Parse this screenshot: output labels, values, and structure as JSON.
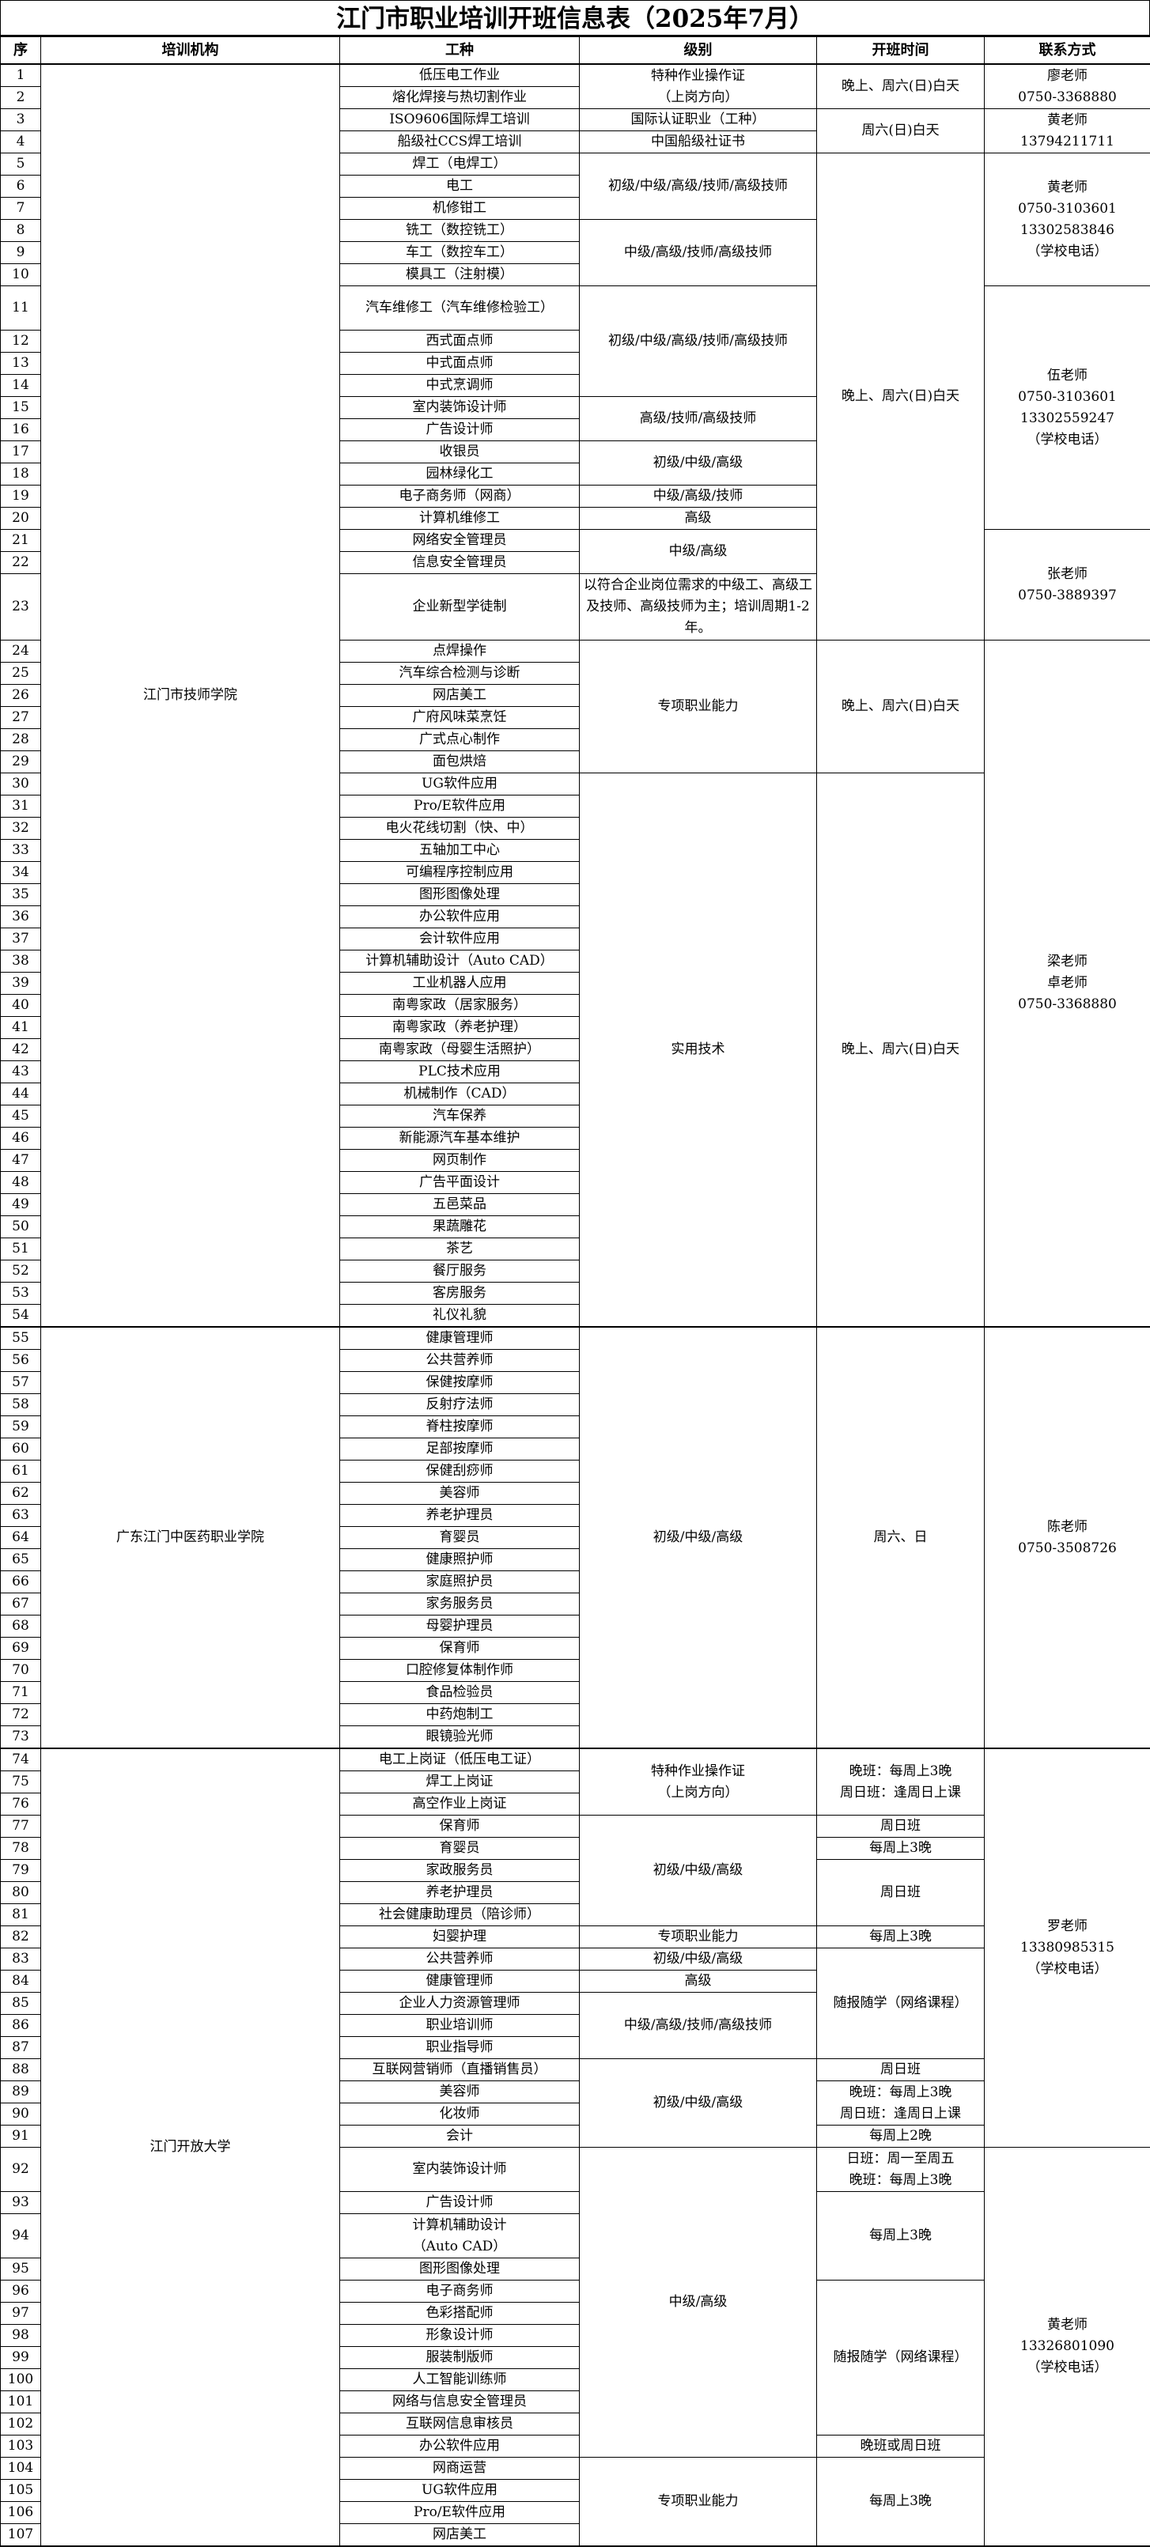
{
  "title": "江门市职业培训开班信息表（2025年7月）",
  "headers": {
    "no": "序",
    "institution": "培训机构",
    "trade": "工种",
    "level": "级别",
    "time": "开班时间",
    "contact": "联系方式"
  },
  "rows": [
    {
      "no": "1",
      "trade": "低压电工作业"
    },
    {
      "no": "2",
      "trade": "熔化焊接与热切割作业"
    },
    {
      "no": "3",
      "trade": "ISO9606国际焊工培训"
    },
    {
      "no": "4",
      "trade": "船级社CCS焊工培训"
    },
    {
      "no": "5",
      "trade": "焊工（电焊工）"
    },
    {
      "no": "6",
      "trade": "电工"
    },
    {
      "no": "7",
      "trade": "机修钳工"
    },
    {
      "no": "8",
      "trade": "铣工（数控铣工）"
    },
    {
      "no": "9",
      "trade": "车工（数控车工）"
    },
    {
      "no": "10",
      "trade": "模具工（注射模）"
    },
    {
      "no": "11",
      "trade": "汽车维修工（汽车维修检验工）"
    },
    {
      "no": "12",
      "trade": "西式面点师"
    },
    {
      "no": "13",
      "trade": "中式面点师"
    },
    {
      "no": "14",
      "trade": "中式烹调师"
    },
    {
      "no": "15",
      "trade": "室内装饰设计师"
    },
    {
      "no": "16",
      "trade": "广告设计师"
    },
    {
      "no": "17",
      "trade": "收银员"
    },
    {
      "no": "18",
      "trade": "园林绿化工"
    },
    {
      "no": "19",
      "trade": "电子商务师（网商）"
    },
    {
      "no": "20",
      "trade": "计算机维修工"
    },
    {
      "no": "21",
      "trade": "网络安全管理员"
    },
    {
      "no": "22",
      "trade": "信息安全管理员"
    },
    {
      "no": "23",
      "trade": "企业新型学徒制"
    },
    {
      "no": "24",
      "trade": "点焊操作"
    },
    {
      "no": "25",
      "trade": "汽车综合检测与诊断"
    },
    {
      "no": "26",
      "trade": "网店美工"
    },
    {
      "no": "27",
      "trade": "广府风味菜烹饪"
    },
    {
      "no": "28",
      "trade": "广式点心制作"
    },
    {
      "no": "29",
      "trade": "面包烘焙"
    },
    {
      "no": "30",
      "trade": "UG软件应用"
    },
    {
      "no": "31",
      "trade": "Pro/E软件应用"
    },
    {
      "no": "32",
      "trade": "电火花线切割（快、中）"
    },
    {
      "no": "33",
      "trade": "五轴加工中心"
    },
    {
      "no": "34",
      "trade": "可编程序控制应用"
    },
    {
      "no": "35",
      "trade": "图形图像处理"
    },
    {
      "no": "36",
      "trade": "办公软件应用"
    },
    {
      "no": "37",
      "trade": "会计软件应用"
    },
    {
      "no": "38",
      "trade": "计算机辅助设计（Auto CAD）"
    },
    {
      "no": "39",
      "trade": "工业机器人应用"
    },
    {
      "no": "40",
      "trade": "南粤家政（居家服务）"
    },
    {
      "no": "41",
      "trade": "南粤家政（养老护理）"
    },
    {
      "no": "42",
      "trade": "南粤家政（母婴生活照护）"
    },
    {
      "no": "43",
      "trade": "PLC技术应用"
    },
    {
      "no": "44",
      "trade": "机械制作（CAD）"
    },
    {
      "no": "45",
      "trade": "汽车保养"
    },
    {
      "no": "46",
      "trade": "新能源汽车基本维护"
    },
    {
      "no": "47",
      "trade": "网页制作"
    },
    {
      "no": "48",
      "trade": "广告平面设计"
    },
    {
      "no": "49",
      "trade": "五邑菜品"
    },
    {
      "no": "50",
      "trade": "果蔬雕花"
    },
    {
      "no": "51",
      "trade": "茶艺"
    },
    {
      "no": "52",
      "trade": "餐厅服务"
    },
    {
      "no": "53",
      "trade": "客房服务"
    },
    {
      "no": "54",
      "trade": "礼仪礼貌"
    },
    {
      "no": "55",
      "trade": "健康管理师"
    },
    {
      "no": "56",
      "trade": "公共营养师"
    },
    {
      "no": "57",
      "trade": "保健按摩师"
    },
    {
      "no": "58",
      "trade": "反射疗法师"
    },
    {
      "no": "59",
      "trade": "脊柱按摩师"
    },
    {
      "no": "60",
      "trade": "足部按摩师"
    },
    {
      "no": "61",
      "trade": "保健刮痧师"
    },
    {
      "no": "62",
      "trade": "美容师"
    },
    {
      "no": "63",
      "trade": "养老护理员"
    },
    {
      "no": "64",
      "trade": "育婴员"
    },
    {
      "no": "65",
      "trade": "健康照护师"
    },
    {
      "no": "66",
      "trade": "家庭照护员"
    },
    {
      "no": "67",
      "trade": "家务服务员"
    },
    {
      "no": "68",
      "trade": "母婴护理员"
    },
    {
      "no": "69",
      "trade": "保育师"
    },
    {
      "no": "70",
      "trade": "口腔修复体制作师"
    },
    {
      "no": "71",
      "trade": "食品检验员"
    },
    {
      "no": "72",
      "trade": "中药炮制工"
    },
    {
      "no": "73",
      "trade": "眼镜验光师"
    },
    {
      "no": "74",
      "trade": "电工上岗证（低压电工证）"
    },
    {
      "no": "75",
      "trade": "焊工上岗证"
    },
    {
      "no": "76",
      "trade": "高空作业上岗证"
    },
    {
      "no": "77",
      "trade": "保育师"
    },
    {
      "no": "78",
      "trade": "育婴员"
    },
    {
      "no": "79",
      "trade": "家政服务员"
    },
    {
      "no": "80",
      "trade": "养老护理员"
    },
    {
      "no": "81",
      "trade": "社会健康助理员（陪诊师）"
    },
    {
      "no": "82",
      "trade": "妇婴护理"
    },
    {
      "no": "83",
      "trade": "公共营养师"
    },
    {
      "no": "84",
      "trade": "健康管理师"
    },
    {
      "no": "85",
      "trade": "企业人力资源管理师"
    },
    {
      "no": "86",
      "trade": "职业培训师"
    },
    {
      "no": "87",
      "trade": "职业指导师"
    },
    {
      "no": "88",
      "trade": "互联网营销师（直播销售员）"
    },
    {
      "no": "89",
      "trade": "美容师"
    },
    {
      "no": "90",
      "trade": "化妆师"
    },
    {
      "no": "91",
      "trade": "会计"
    },
    {
      "no": "92",
      "trade": "室内装饰设计师"
    },
    {
      "no": "93",
      "trade": "广告设计师"
    },
    {
      "no": "94",
      "trade": "计算机辅助设计\n（Auto CAD）"
    },
    {
      "no": "95",
      "trade": "图形图像处理"
    },
    {
      "no": "96",
      "trade": "电子商务师"
    },
    {
      "no": "97",
      "trade": "色彩搭配师"
    },
    {
      "no": "98",
      "trade": "形象设计师"
    },
    {
      "no": "99",
      "trade": "服装制版师"
    },
    {
      "no": "100",
      "trade": "人工智能训练师"
    },
    {
      "no": "101",
      "trade": "网络与信息安全管理员"
    },
    {
      "no": "102",
      "trade": "互联网信息审核员"
    },
    {
      "no": "103",
      "trade": "办公软件应用"
    },
    {
      "no": "104",
      "trade": "网商运营"
    },
    {
      "no": "105",
      "trade": "UG软件应用"
    },
    {
      "no": "106",
      "trade": "Pro/E软件应用"
    },
    {
      "no": "107",
      "trade": "网店美工"
    }
  ],
  "institutions": [
    {
      "from": 1,
      "to": 54,
      "text": "江门市技师学院"
    },
    {
      "from": 55,
      "to": 73,
      "text": "广东江门中医药职业学院"
    },
    {
      "from": 74,
      "to": 107,
      "text": "江门开放大学"
    }
  ],
  "levels": [
    {
      "from": 1,
      "to": 2,
      "text": "特种作业操作证\n（上岗方向）"
    },
    {
      "from": 3,
      "to": 3,
      "text": "国际认证职业（工种）"
    },
    {
      "from": 4,
      "to": 4,
      "text": "中国船级社证书"
    },
    {
      "from": 5,
      "to": 7,
      "text": "初级/中级/高级/技师/高级技师"
    },
    {
      "from": 8,
      "to": 10,
      "text": "中级/高级/技师/高级技师"
    },
    {
      "from": 11,
      "to": 14,
      "text": "初级/中级/高级/技师/高级技师"
    },
    {
      "from": 15,
      "to": 16,
      "text": "高级/技师/高级技师"
    },
    {
      "from": 17,
      "to": 18,
      "text": "初级/中级/高级"
    },
    {
      "from": 19,
      "to": 19,
      "text": "中级/高级/技师"
    },
    {
      "from": 20,
      "to": 20,
      "text": "高级"
    },
    {
      "from": 21,
      "to": 22,
      "text": "中级/高级"
    },
    {
      "from": 23,
      "to": 23,
      "text": "以符合企业岗位需求的中级工、高级工及技师、高级技师为主；培训周期1-2年。"
    },
    {
      "from": 24,
      "to": 29,
      "text": "专项职业能力"
    },
    {
      "from": 30,
      "to": 54,
      "text": "实用技术"
    },
    {
      "from": 55,
      "to": 73,
      "text": "初级/中级/高级"
    },
    {
      "from": 74,
      "to": 76,
      "text": "特种作业操作证\n（上岗方向）"
    },
    {
      "from": 77,
      "to": 81,
      "text": "初级/中级/高级"
    },
    {
      "from": 82,
      "to": 82,
      "text": "专项职业能力"
    },
    {
      "from": 83,
      "to": 83,
      "text": "初级/中级/高级"
    },
    {
      "from": 84,
      "to": 84,
      "text": "高级"
    },
    {
      "from": 85,
      "to": 87,
      "text": "中级/高级/技师/高级技师"
    },
    {
      "from": 88,
      "to": 91,
      "text": "初级/中级/高级"
    },
    {
      "from": 92,
      "to": 103,
      "text": "中级/高级"
    },
    {
      "from": 104,
      "to": 107,
      "text": "专项职业能力"
    }
  ],
  "times": [
    {
      "from": 1,
      "to": 2,
      "text": "晚上、周六(日)白天"
    },
    {
      "from": 3,
      "to": 4,
      "text": "周六(日)白天"
    },
    {
      "from": 5,
      "to": 23,
      "text": "晚上、周六(日)白天"
    },
    {
      "from": 24,
      "to": 29,
      "text": "晚上、周六(日)白天"
    },
    {
      "from": 30,
      "to": 54,
      "text": "晚上、周六(日)白天"
    },
    {
      "from": 55,
      "to": 73,
      "text": "周六、日"
    },
    {
      "from": 74,
      "to": 76,
      "text": "晚班：每周上3晚\n周日班：逢周日上课"
    },
    {
      "from": 77,
      "to": 77,
      "text": "周日班"
    },
    {
      "from": 78,
      "to": 78,
      "text": "每周上3晚"
    },
    {
      "from": 79,
      "to": 81,
      "text": "周日班"
    },
    {
      "from": 82,
      "to": 82,
      "text": "每周上3晚"
    },
    {
      "from": 83,
      "to": 87,
      "text": "随报随学（网络课程）"
    },
    {
      "from": 88,
      "to": 88,
      "text": "周日班"
    },
    {
      "from": 89,
      "to": 90,
      "text": "晚班：每周上3晚\n周日班：逢周日上课"
    },
    {
      "from": 91,
      "to": 91,
      "text": "每周上2晚"
    },
    {
      "from": 92,
      "to": 92,
      "text": "日班：周一至周五\n晚班：每周上3晚"
    },
    {
      "from": 93,
      "to": 95,
      "text": "每周上3晚"
    },
    {
      "from": 96,
      "to": 102,
      "text": "随报随学（网络课程）"
    },
    {
      "from": 103,
      "to": 103,
      "text": "晚班或周日班"
    },
    {
      "from": 104,
      "to": 107,
      "text": "每周上3晚"
    }
  ],
  "contacts": [
    {
      "from": 1,
      "to": 2,
      "text": "廖老师\n0750-3368880"
    },
    {
      "from": 3,
      "to": 4,
      "text": "黄老师\n13794211711"
    },
    {
      "from": 5,
      "to": 10,
      "text": "黄老师\n0750-3103601\n13302583846\n（学校电话）"
    },
    {
      "from": 11,
      "to": 20,
      "text": "伍老师\n0750-3103601\n13302559247\n（学校电话）"
    },
    {
      "from": 21,
      "to": 23,
      "text": "张老师\n0750-3889397"
    },
    {
      "from": 24,
      "to": 54,
      "text": "梁老师\n卓老师\n0750-3368880"
    },
    {
      "from": 55,
      "to": 73,
      "text": "陈老师\n0750-3508726"
    },
    {
      "from": 74,
      "to": 91,
      "text": "罗老师\n13380985315\n（学校电话）"
    },
    {
      "from": 92,
      "to": 107,
      "text": "黄老师\n13326801090\n（学校电话）"
    }
  ]
}
